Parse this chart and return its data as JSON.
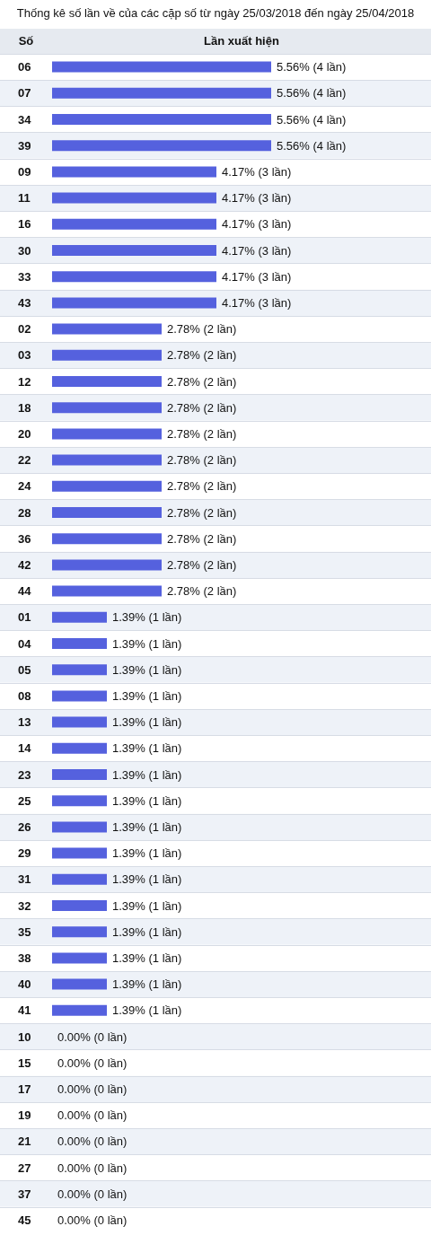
{
  "chart_data": {
    "type": "bar",
    "orientation": "horizontal",
    "title": "Thống kê số lần về của các cặp số từ ngày 25/03/2018 đến ngày 25/04/2018",
    "ylabel": "Số",
    "xlabel": "Lần xuất hiện",
    "categories": [
      "06",
      "07",
      "34",
      "39",
      "09",
      "11",
      "16",
      "30",
      "33",
      "43",
      "02",
      "03",
      "12",
      "18",
      "20",
      "22",
      "24",
      "28",
      "36",
      "42",
      "44",
      "01",
      "04",
      "05",
      "08",
      "13",
      "14",
      "23",
      "25",
      "26",
      "29",
      "31",
      "32",
      "35",
      "38",
      "40",
      "41",
      "10",
      "15",
      "17",
      "19",
      "21",
      "27",
      "37",
      "45"
    ],
    "color": "#5561de",
    "values": [
      5.56,
      5.56,
      5.56,
      5.56,
      4.17,
      4.17,
      4.17,
      4.17,
      4.17,
      4.17,
      2.78,
      2.78,
      2.78,
      2.78,
      2.78,
      2.78,
      2.78,
      2.78,
      2.78,
      2.78,
      2.78,
      1.39,
      1.39,
      1.39,
      1.39,
      1.39,
      1.39,
      1.39,
      1.39,
      1.39,
      1.39,
      1.39,
      1.39,
      1.39,
      1.39,
      1.39,
      1.39,
      0,
      0,
      0,
      0,
      0,
      0,
      0,
      0
    ],
    "value_labels": [
      "5.56% (4 lần)",
      "5.56% (4 lần)",
      "5.56% (4 lần)",
      "5.56% (4 lần)",
      "4.17% (3 lần)",
      "4.17% (3 lần)",
      "4.17% (3 lần)",
      "4.17% (3 lần)",
      "4.17% (3 lần)",
      "4.17% (3 lần)",
      "2.78% (2 lần)",
      "2.78% (2 lần)",
      "2.78% (2 lần)",
      "2.78% (2 lần)",
      "2.78% (2 lần)",
      "2.78% (2 lần)",
      "2.78% (2 lần)",
      "2.78% (2 lần)",
      "2.78% (2 lần)",
      "2.78% (2 lần)",
      "2.78% (2 lần)",
      "1.39% (1 lần)",
      "1.39% (1 lần)",
      "1.39% (1 lần)",
      "1.39% (1 lần)",
      "1.39% (1 lần)",
      "1.39% (1 lần)",
      "1.39% (1 lần)",
      "1.39% (1 lần)",
      "1.39% (1 lần)",
      "1.39% (1 lần)",
      "1.39% (1 lần)",
      "1.39% (1 lần)",
      "1.39% (1 lần)",
      "1.39% (1 lần)",
      "1.39% (1 lần)",
      "1.39% (1 lần)",
      "0.00% (0 lần)",
      "0.00% (0 lần)",
      "0.00% (0 lần)",
      "0.00% (0 lần)",
      "0.00% (0 lần)",
      "0.00% (0 lần)",
      "0.00% (0 lần)",
      "0.00% (0 lần)"
    ],
    "grid": "y"
  }
}
